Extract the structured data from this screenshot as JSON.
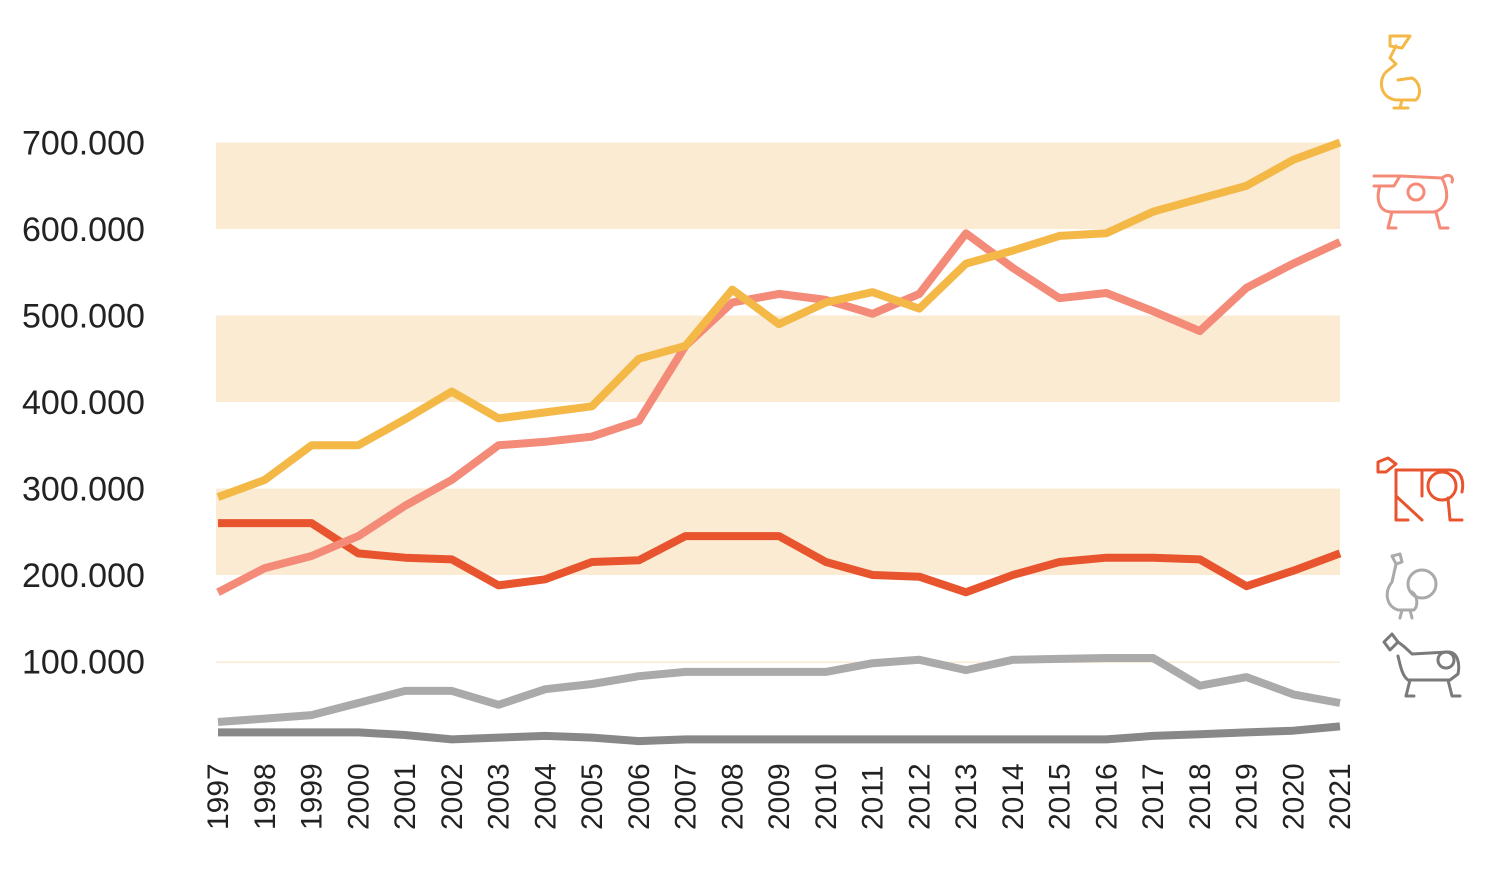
{
  "chart_data": {
    "type": "line",
    "title": "",
    "xlabel": "",
    "ylabel": "",
    "x": [
      1997,
      1998,
      1999,
      2000,
      2001,
      2002,
      2003,
      2004,
      2005,
      2006,
      2007,
      2008,
      2009,
      2010,
      2011,
      2012,
      2013,
      2014,
      2015,
      2016,
      2017,
      2018,
      2019,
      2020,
      2021
    ],
    "x_tick_labels": [
      "1997",
      "1998",
      "1999",
      "2000",
      "2001",
      "2002",
      "2003",
      "2004",
      "2005",
      "2006",
      "2007",
      "2008",
      "2009",
      "2010",
      "2011",
      "2012",
      "2013",
      "2014",
      "2015",
      "2016",
      "2017",
      "2018",
      "2019",
      "2020",
      "2021"
    ],
    "y_ticks": [
      100000,
      200000,
      300000,
      400000,
      500000,
      600000,
      700000
    ],
    "y_tick_labels": [
      "100.000",
      "200.000",
      "300.000",
      "400.000",
      "500.000",
      "600.000",
      "700.000"
    ],
    "ylim": [
      0,
      725000
    ],
    "grid": false,
    "bands": [
      [
        0,
        100000
      ],
      [
        200000,
        300000
      ],
      [
        400000,
        500000
      ],
      [
        600000,
        700000
      ]
    ],
    "colors": {
      "band": "#faebd2",
      "text": "#222222"
    },
    "series": [
      {
        "icon": "chicken-icon",
        "color": "#f4b847",
        "values": [
          290000,
          310000,
          350000,
          350000,
          380000,
          412000,
          381000,
          388000,
          395000,
          450000,
          465000,
          530000,
          490000,
          515000,
          527000,
          508000,
          560000,
          575000,
          592000,
          595000,
          620000,
          635000,
          650000,
          680000,
          700000
        ]
      },
      {
        "icon": "pig-icon",
        "color": "#f48a78",
        "values": [
          180000,
          208000,
          222000,
          245000,
          280000,
          310000,
          350000,
          354000,
          360000,
          378000,
          465000,
          515000,
          525000,
          518000,
          502000,
          525000,
          595000,
          555000,
          520000,
          526000,
          505000,
          482000,
          532000,
          560000,
          585000
        ]
      },
      {
        "icon": "cow-icon",
        "color": "#e8542e",
        "values": [
          260000,
          260000,
          260000,
          225000,
          220000,
          218000,
          188000,
          195000,
          215000,
          217000,
          245000,
          245000,
          245000,
          215000,
          200000,
          198000,
          180000,
          200000,
          215000,
          220000,
          220000,
          218000,
          187000,
          205000,
          225000
        ]
      },
      {
        "icon": "turkey-icon",
        "color": "#aaaaaa",
        "values": [
          30000,
          34000,
          38000,
          52000,
          66000,
          66000,
          50000,
          68000,
          74000,
          83000,
          88000,
          88000,
          88000,
          88000,
          98000,
          102000,
          90000,
          102000,
          103000,
          104000,
          104000,
          72000,
          82000,
          62000,
          52000
        ]
      },
      {
        "icon": "sheep-icon",
        "color": "#888888",
        "values": [
          18000,
          18000,
          18000,
          18000,
          15000,
          10000,
          12000,
          14000,
          12000,
          8000,
          10000,
          10000,
          10000,
          10000,
          10000,
          10000,
          10000,
          10000,
          10000,
          10000,
          14000,
          16000,
          18000,
          20000,
          25000
        ]
      }
    ]
  }
}
